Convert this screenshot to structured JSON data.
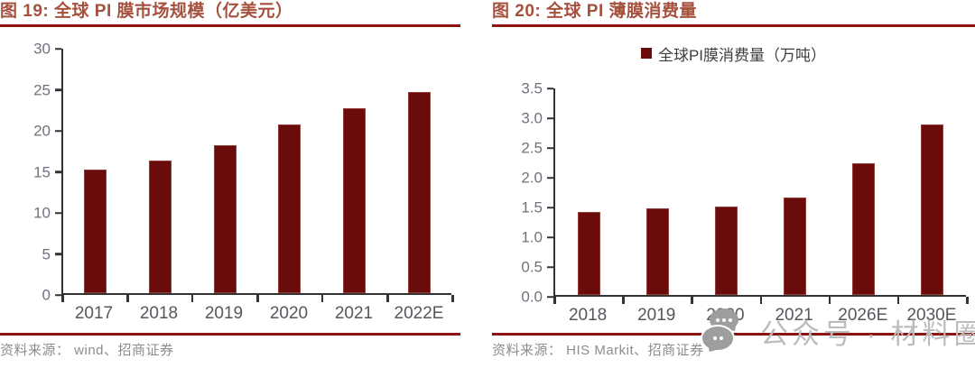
{
  "colors": {
    "bar": "#6b0c0c",
    "title": "#a5513e",
    "rule": "#8b1410",
    "axis": "#333333",
    "y_label": "#6e737e",
    "x_label": "#54575d",
    "legend_text": "#3d3d3d",
    "source": "#8c8c8c",
    "watermark": "#bcbcbc"
  },
  "chart_data": [
    {
      "id": "fig19",
      "type": "bar",
      "title": "图 19:  全球 PI 膜市场规模（亿美元）",
      "legend": null,
      "categories": [
        "2017",
        "2018",
        "2019",
        "2020",
        "2021",
        "2022E"
      ],
      "values": [
        15.1,
        16.2,
        18.0,
        20.5,
        22.5,
        24.5
      ],
      "ylim": [
        0,
        30
      ],
      "yticks": [
        0,
        5,
        10,
        15,
        20,
        25,
        30
      ],
      "ytick_labels": [
        "0",
        "5",
        "10",
        "15",
        "20",
        "25",
        "30"
      ],
      "grid": false,
      "legend_position": "none",
      "bar_color": "#6b0c0c",
      "source": "资料来源： wind、招商证券"
    },
    {
      "id": "fig20",
      "type": "bar",
      "title": "图 20:  全球 PI 薄膜消费量",
      "legend": "全球PI膜消费量（万吨）",
      "categories": [
        "2018",
        "2019",
        "2020",
        "2021",
        "2026E",
        "2030E"
      ],
      "values": [
        1.4,
        1.45,
        1.48,
        1.64,
        2.21,
        2.87
      ],
      "ylim": [
        0,
        3.5
      ],
      "yticks": [
        0,
        0.5,
        1.0,
        1.5,
        2.0,
        2.5,
        3.0,
        3.5
      ],
      "ytick_labels": [
        "0.0",
        "0.5",
        "1.0",
        "1.5",
        "2.0",
        "2.5",
        "3.0",
        "3.5"
      ],
      "grid": false,
      "legend_position": "top-center",
      "bar_color": "#6b0c0c",
      "source": "资料来源： HIS Markit、招商证券"
    }
  ],
  "watermark": {
    "icon": "wechat-icon",
    "text": "公众号 · 材料圈"
  }
}
